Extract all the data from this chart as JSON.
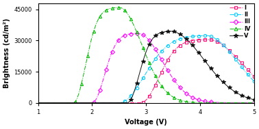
{
  "title": "",
  "xlabel": "Voltage (V)",
  "ylabel": "Brightness (cd/m²)",
  "xlim": [
    1,
    5
  ],
  "ylim": [
    0,
    48000
  ],
  "yticks": [
    0,
    15000,
    30000,
    45000
  ],
  "xticks": [
    1,
    2,
    3,
    4,
    5
  ],
  "series": [
    {
      "label": "I",
      "color": "#FF1177",
      "marker": "s",
      "linestyle": "-.",
      "peak_x": 4.15,
      "peak_y": 30500,
      "turn_on": 2.9,
      "rise_k": 7.0,
      "fall_k": 1.2
    },
    {
      "label": "II",
      "color": "#00CCFF",
      "marker": "o",
      "linestyle": "-.",
      "peak_x": 4.1,
      "peak_y": 32500,
      "turn_on": 2.5,
      "rise_k": 6.0,
      "fall_k": 1.4
    },
    {
      "label": "III",
      "color": "#FF00FF",
      "marker": "D",
      "linestyle": "-.",
      "peak_x": 2.85,
      "peak_y": 33500,
      "turn_on": 2.0,
      "rise_k": 7.0,
      "fall_k": 2.5
    },
    {
      "label": "IV",
      "color": "#00BB00",
      "marker": "^",
      "linestyle": "-.",
      "peak_x": 2.5,
      "peak_y": 46000,
      "turn_on": 1.65,
      "rise_k": 7.0,
      "fall_k": 2.8
    },
    {
      "label": "V",
      "color": "#111111",
      "marker": "*",
      "linestyle": "-",
      "peak_x": 3.45,
      "peak_y": 34500,
      "turn_on": 2.65,
      "rise_k": 6.5,
      "fall_k": 1.3
    }
  ]
}
